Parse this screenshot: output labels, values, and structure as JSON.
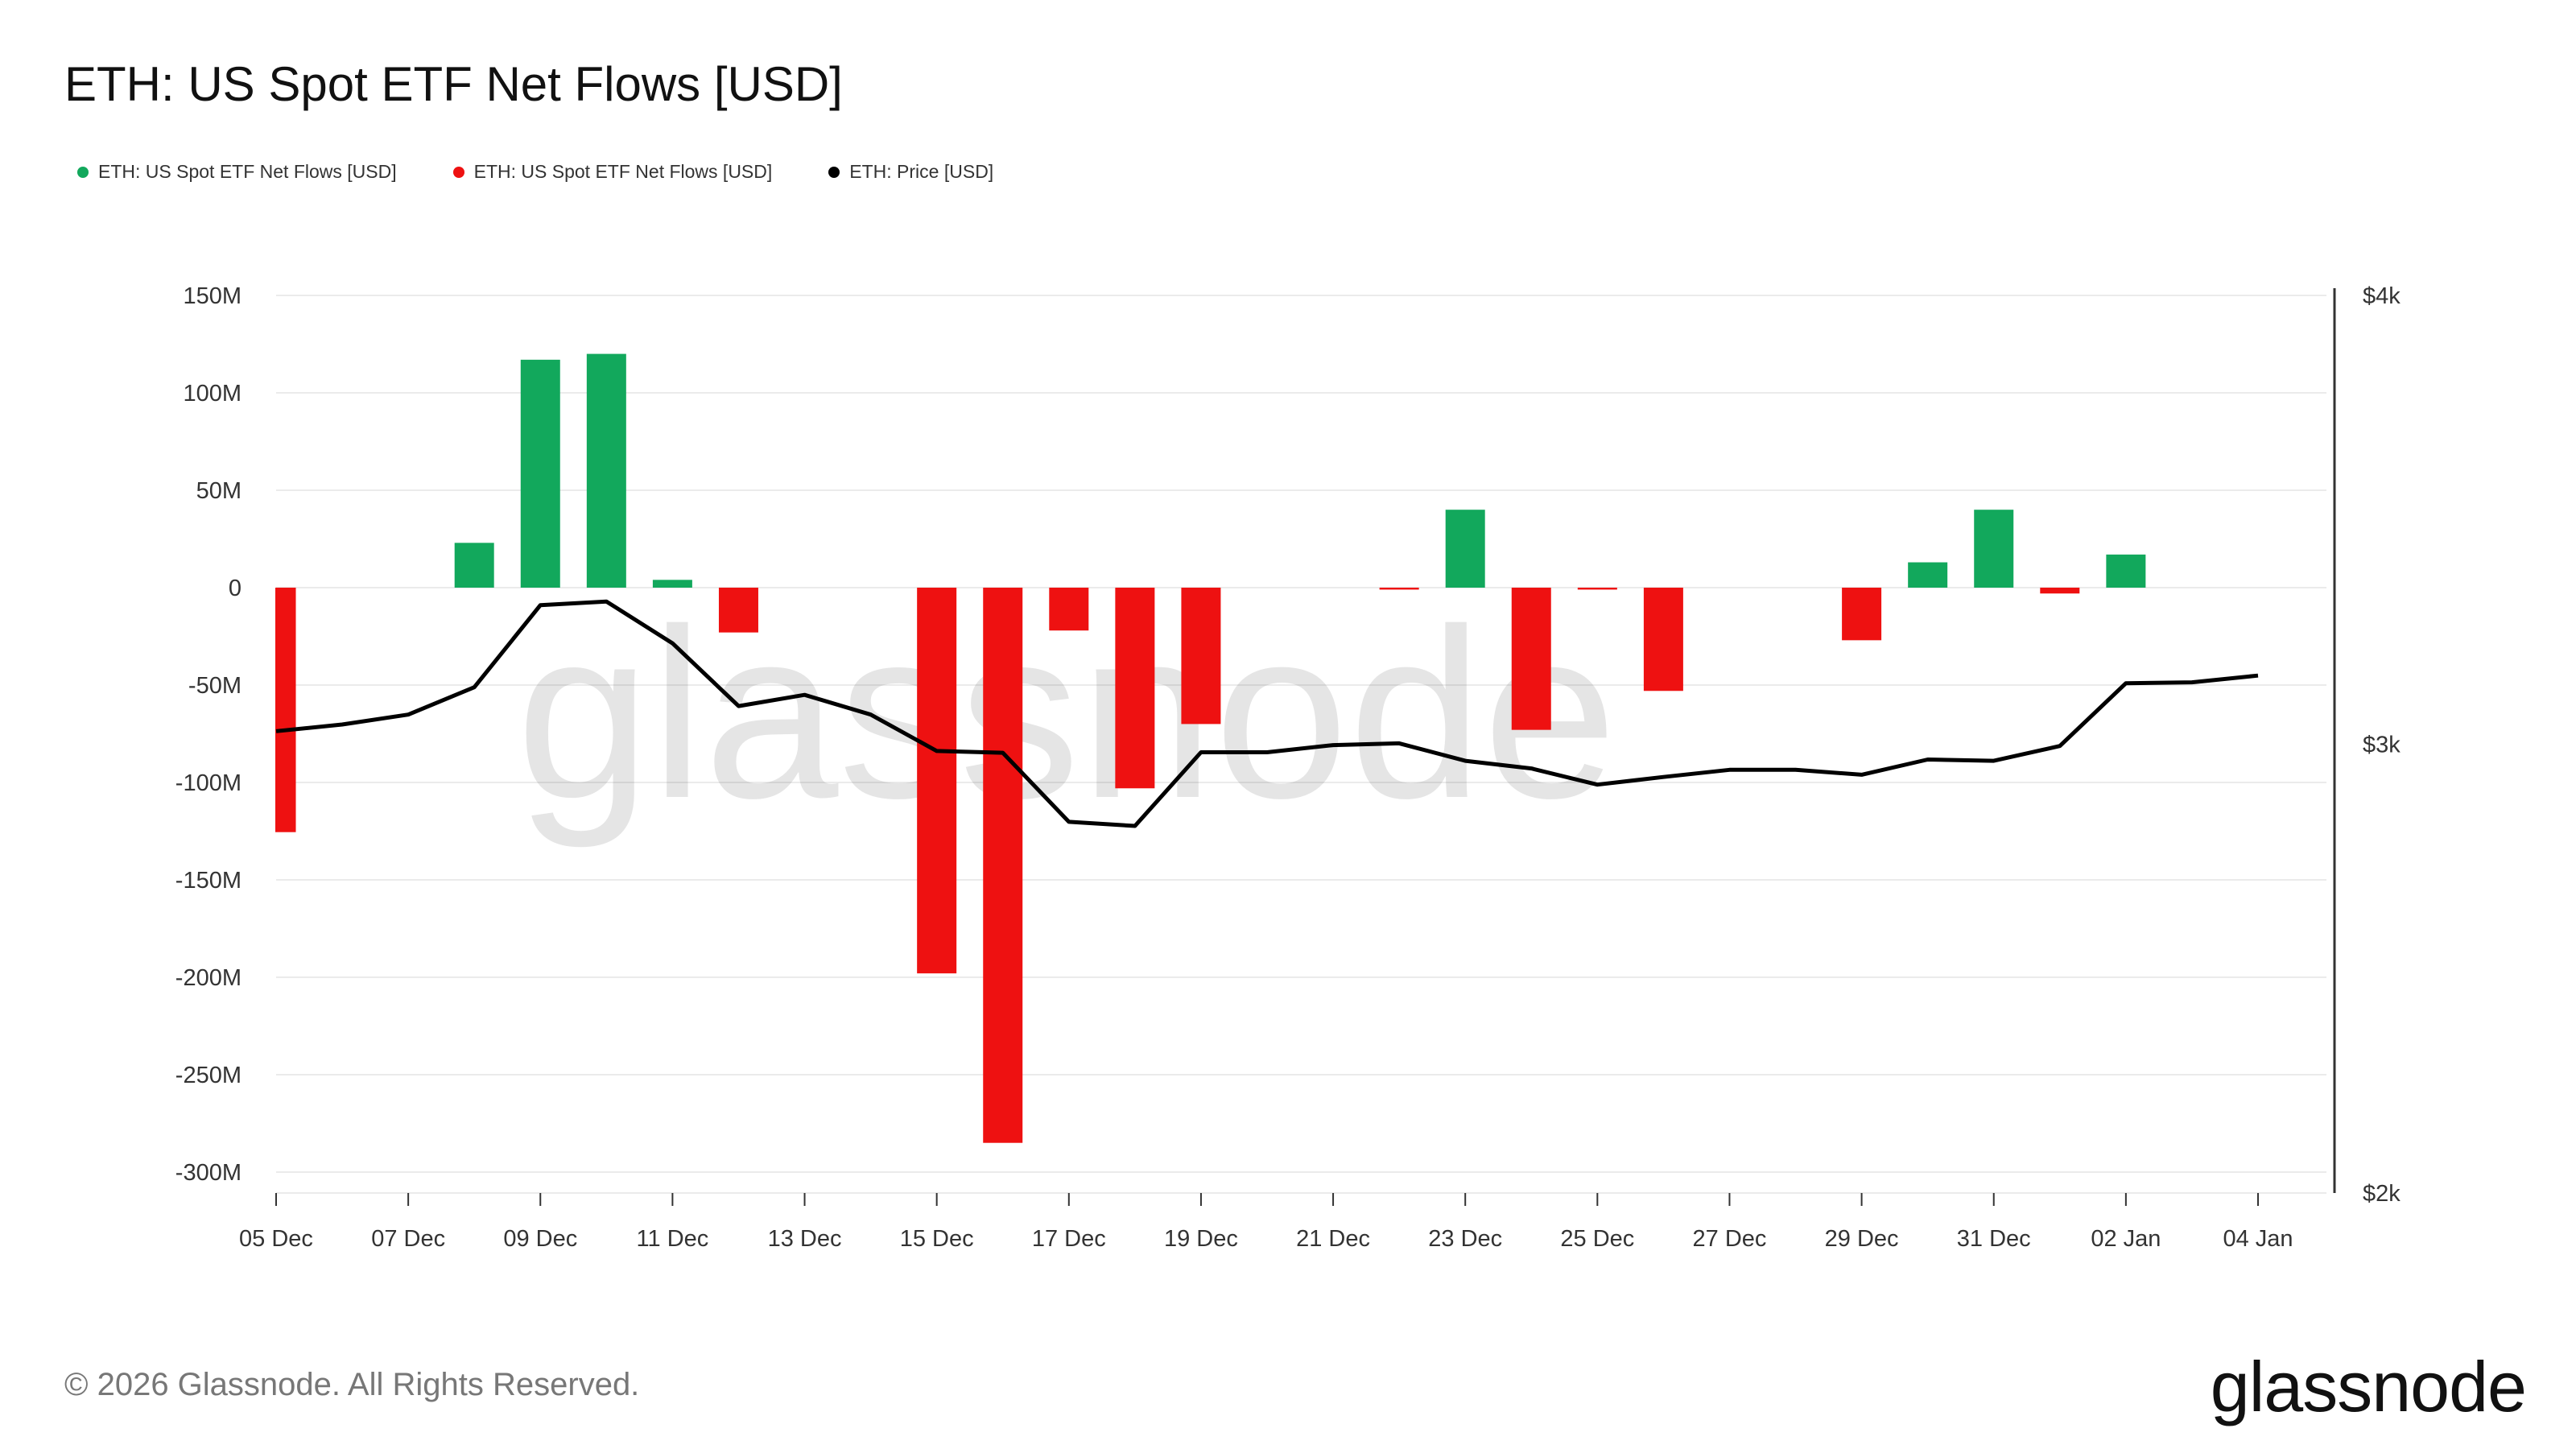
{
  "title": "ETH: US Spot ETF Net Flows [USD]",
  "legend": [
    {
      "label": "ETH: US Spot ETF Net Flows [USD]",
      "color": "#12a85c"
    },
    {
      "label": "ETH: US Spot ETF Net Flows [USD]",
      "color": "#ee1111"
    },
    {
      "label": "ETH: Price [USD]",
      "color": "#000000"
    }
  ],
  "watermark": "glassnode",
  "footer": {
    "copyright": "© 2026 Glassnode. All Rights Reserved.",
    "logo": "glassnode"
  },
  "colors": {
    "positive": "#12a85c",
    "negative": "#ee1111",
    "price": "#000000",
    "grid": "#ebebeb",
    "axis_line": "#333333"
  },
  "chart_data": {
    "type": "bar",
    "x_tick_labels": [
      "05 Dec",
      "07 Dec",
      "09 Dec",
      "11 Dec",
      "13 Dec",
      "15 Dec",
      "17 Dec",
      "19 Dec",
      "21 Dec",
      "23 Dec",
      "25 Dec",
      "27 Dec",
      "29 Dec",
      "31 Dec",
      "02 Jan",
      "04 Jan"
    ],
    "x_tick_dates": [
      "2025-12-05",
      "2025-12-07",
      "2025-12-09",
      "2025-12-11",
      "2025-12-13",
      "2025-12-15",
      "2025-12-17",
      "2025-12-19",
      "2025-12-21",
      "2025-12-23",
      "2025-12-25",
      "2025-12-27",
      "2025-12-29",
      "2025-12-31",
      "2026-01-02",
      "2026-01-04"
    ],
    "x_range": [
      "2025-12-05",
      "2026-01-04"
    ],
    "y_left_ticks": [
      150,
      100,
      50,
      0,
      -50,
      -100,
      -150,
      -200,
      -250,
      -300
    ],
    "y_left_tick_labels": [
      "150M",
      "100M",
      "50M",
      "0",
      "-50M",
      "-100M",
      "-150M",
      "-200M",
      "-250M",
      "-300M"
    ],
    "y_left_range": [
      -310,
      150
    ],
    "y_left_unit": "M USD",
    "y_right_ticks": [
      4000,
      3000,
      2000
    ],
    "y_right_tick_labels": [
      "$4k",
      "$3k",
      "$2k"
    ],
    "y_right_range": [
      2000,
      4000
    ],
    "grid": true,
    "legend_position": "top-left",
    "series": [
      {
        "name": "ETH: US Spot ETF Net Flows [USD]",
        "type": "bar",
        "dates": [
          "2025-12-05",
          "2025-12-08",
          "2025-12-09",
          "2025-12-10",
          "2025-12-11",
          "2025-12-12",
          "2025-12-15",
          "2025-12-16",
          "2025-12-17",
          "2025-12-18",
          "2025-12-19",
          "2025-12-22",
          "2025-12-23",
          "2025-12-24",
          "2025-12-25",
          "2025-12-26",
          "2025-12-29",
          "2025-12-30",
          "2025-12-31",
          "2026-01-01",
          "2026-01-02"
        ],
        "values": [
          -125.5,
          23.0,
          117.0,
          120.0,
          4.0,
          -23.0,
          -198.0,
          -285.0,
          -22.0,
          -103.0,
          -70.0,
          -1.0,
          40.0,
          -73.0,
          -1.0,
          -53.0,
          -27.0,
          13.0,
          40.0,
          -3.0,
          17.0
        ]
      },
      {
        "name": "ETH: Price [USD]",
        "type": "line",
        "axis": "right",
        "dates": [
          "2025-12-05",
          "2025-12-06",
          "2025-12-07",
          "2025-12-08",
          "2025-12-09",
          "2025-12-10",
          "2025-12-11",
          "2025-12-12",
          "2025-12-13",
          "2025-12-14",
          "2025-12-15",
          "2025-12-16",
          "2025-12-17",
          "2025-12-18",
          "2025-12-19",
          "2025-12-20",
          "2025-12-21",
          "2025-12-22",
          "2025-12-23",
          "2025-12-24",
          "2025-12-25",
          "2025-12-26",
          "2025-12-27",
          "2025-12-28",
          "2025-12-29",
          "2025-12-30",
          "2025-12-31",
          "2026-01-01",
          "2026-01-02",
          "2026-01-03",
          "2026-01-04"
        ],
        "values": [
          3029,
          3044,
          3066,
          3127,
          3310,
          3318,
          3225,
          3085,
          3110,
          3066,
          2985,
          2981,
          2827,
          2818,
          2982,
          2982,
          2998,
          3002,
          2963,
          2946,
          2910,
          2927,
          2943,
          2943,
          2932,
          2966,
          2963,
          2996,
          3136,
          3138,
          3153
        ]
      }
    ]
  }
}
